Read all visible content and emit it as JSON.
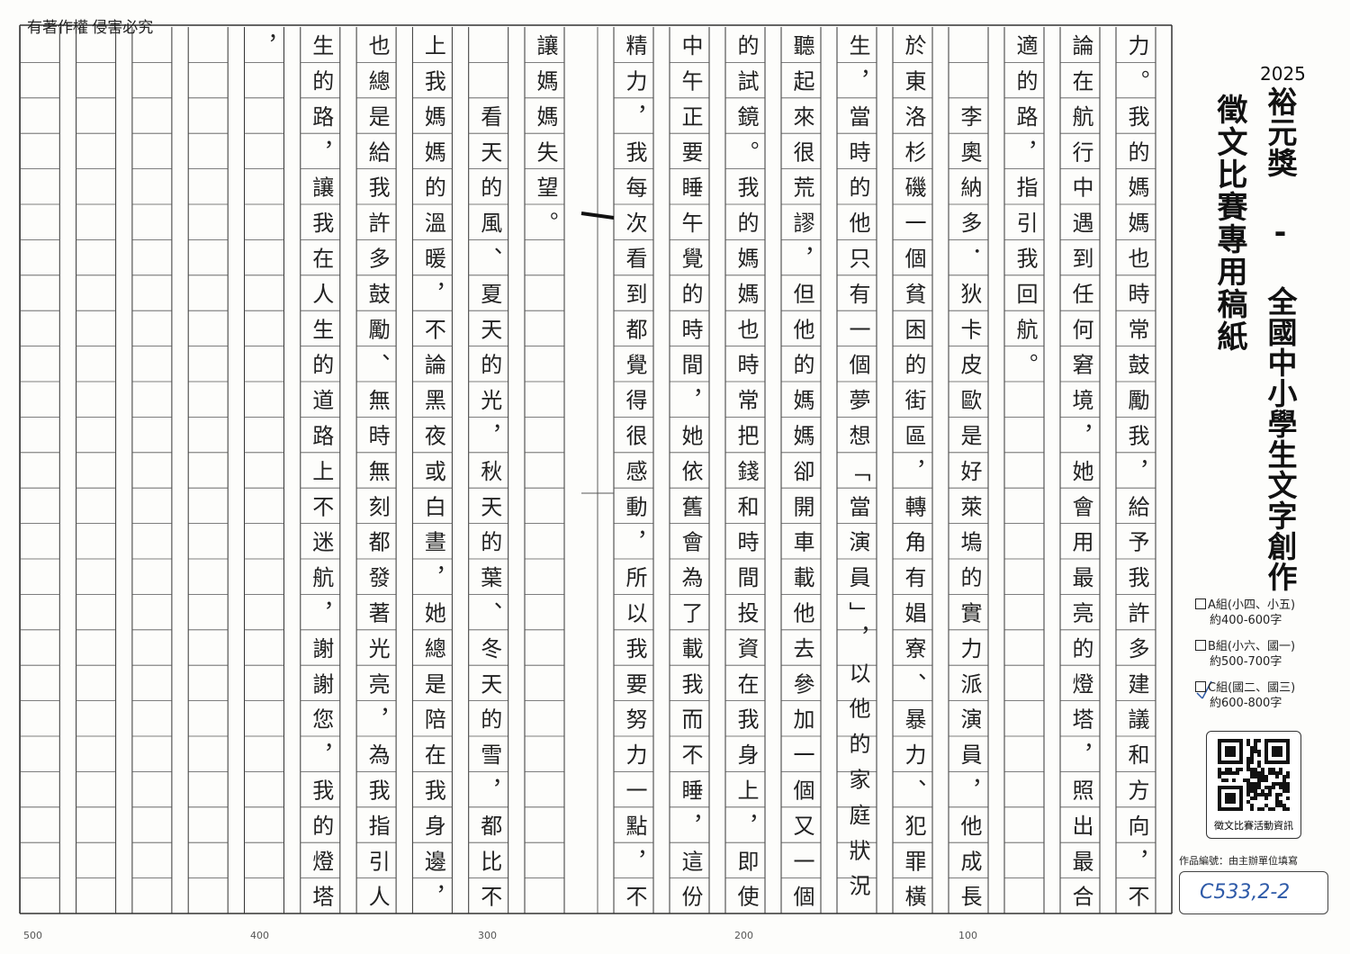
{
  "header": {
    "copyright": "有著作權 侵害必究"
  },
  "title": {
    "year": "2025",
    "main": "裕元獎 - 全國中小學生文字創作",
    "sub": "徵文比賽專用稿紙"
  },
  "columns": [
    "力。我的媽媽也時常鼓勵我，給予我許多建議和方向，不",
    "論在航行中遇到任何窘境，她會用最亮的燈塔，照出最合",
    "適的路，指引我回航。",
    "　　李奧納多．狄卡皮歐是好萊塢的實力派演員，他成長",
    "於東洛杉磯一個貧困的街區，轉角有娼寮、暴力、犯罪橫",
    "生，當時的他只有一個夢想「當演員」，以他的家庭狀況",
    "聽起來很荒謬，但他的媽媽卻開車載他去參加一個又一個",
    "的試鏡。我的媽媽也時常把錢和時間投資在我身上，即使",
    "中午正要睡午覺的時間，她依舊會為了載我而不睡，這份",
    "精力，我每次看到都覺得很感動，所以我要努力一點，不",
    "讓媽媽失望。",
    "　　看天的風、夏天的光，秋天的葉、冬天的雪，都比不",
    "上我媽媽的溫暖，不論黑夜或白晝，她總是陪在我身邊，",
    "也總是給我許多鼓勵、無時無刻都發著光亮，為我指引人",
    "生的路，讓我在人生的道路上不迷航，謝謝您，我的燈塔",
    "，"
  ],
  "options": [
    {
      "group": "A組(小四、小五)",
      "words": "約400-600字"
    },
    {
      "group": "B組(小六、國一)",
      "words": "約500-700字"
    },
    {
      "group": "C組(國二、國三)",
      "words": "約600-800字"
    }
  ],
  "qr": {
    "caption": "徵文比賽活動資訊"
  },
  "serial": {
    "label": "作品編號：由主辦單位填寫",
    "value": "C533,2-2"
  },
  "ruler": [
    "500",
    "400",
    "300",
    "200",
    "100"
  ]
}
